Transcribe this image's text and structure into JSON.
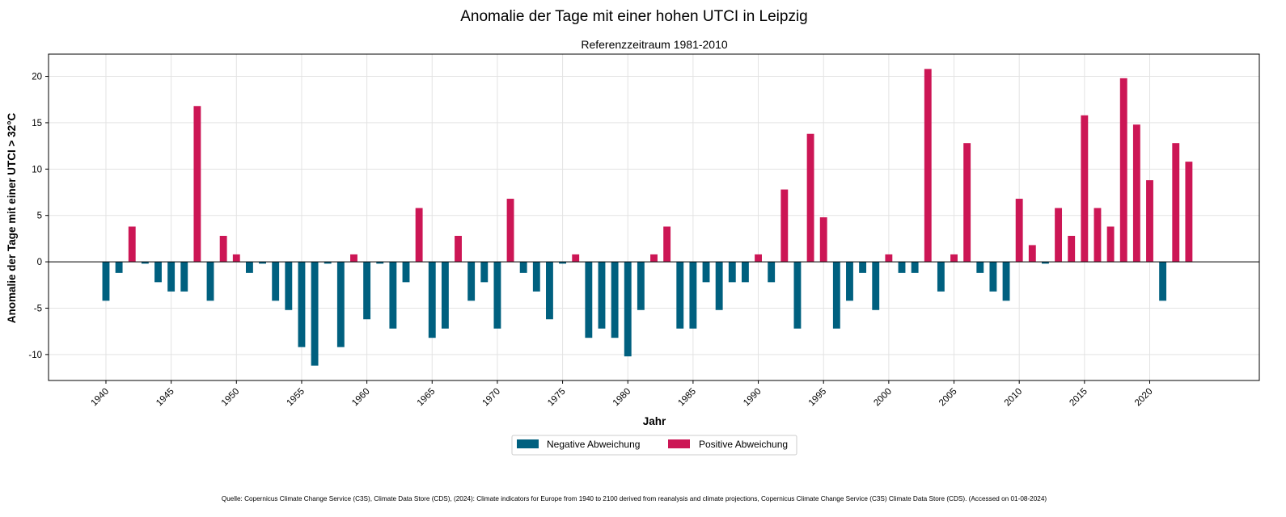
{
  "chart_data": {
    "type": "bar",
    "title": "Anomalie der Tage mit einer hohen UTCI in Leipzig",
    "subtitle": "Referenzzeitraum 1981-2010",
    "xlabel": "Jahr",
    "ylabel": "Anomalie der Tage mit einer UTCI > 32°C",
    "ylim": [
      -12.8,
      22.4
    ],
    "xlim": [
      1935.6,
      2028.4
    ],
    "grid": true,
    "legend_position": "bottom-center",
    "x_ticks": [
      1940,
      1945,
      1950,
      1955,
      1960,
      1965,
      1970,
      1975,
      1980,
      1985,
      1990,
      1995,
      2000,
      2005,
      2010,
      2015,
      2020
    ],
    "y_ticks": [
      -10,
      -5,
      0,
      5,
      10,
      15,
      20
    ],
    "series": [
      {
        "name": "Negative Abweichung",
        "color": "#00607f"
      },
      {
        "name": "Positive Abweichung",
        "color": "#cc1655"
      }
    ],
    "x": [
      1940,
      1941,
      1942,
      1943,
      1944,
      1945,
      1946,
      1947,
      1948,
      1949,
      1950,
      1951,
      1952,
      1953,
      1954,
      1955,
      1956,
      1957,
      1958,
      1959,
      1960,
      1961,
      1962,
      1963,
      1964,
      1965,
      1966,
      1967,
      1968,
      1969,
      1970,
      1971,
      1972,
      1973,
      1974,
      1975,
      1976,
      1977,
      1978,
      1979,
      1980,
      1981,
      1982,
      1983,
      1984,
      1985,
      1986,
      1987,
      1988,
      1989,
      1990,
      1991,
      1992,
      1993,
      1994,
      1995,
      1996,
      1997,
      1998,
      1999,
      2000,
      2001,
      2002,
      2003,
      2004,
      2005,
      2006,
      2007,
      2008,
      2009,
      2010,
      2011,
      2012,
      2013,
      2014,
      2015,
      2016,
      2017,
      2018,
      2019,
      2020,
      2021,
      2022,
      2023
    ],
    "values": [
      -4.2,
      -1.2,
      3.8,
      -0.2,
      -2.2,
      -3.2,
      -3.2,
      16.8,
      -4.2,
      2.8,
      0.8,
      -1.2,
      -0.2,
      -4.2,
      -5.2,
      -9.2,
      -11.2,
      -0.2,
      -9.2,
      0.8,
      -6.2,
      -0.2,
      -7.2,
      -2.2,
      5.8,
      -8.2,
      -7.2,
      2.8,
      -4.2,
      -2.2,
      -7.2,
      6.8,
      -1.2,
      -3.2,
      -6.2,
      -0.2,
      0.8,
      -8.2,
      -7.2,
      -8.2,
      -10.2,
      -5.2,
      0.8,
      3.8,
      -7.2,
      -7.2,
      -2.2,
      -5.2,
      -2.2,
      -2.2,
      0.8,
      -2.2,
      7.8,
      -7.2,
      13.8,
      4.8,
      -7.2,
      -4.2,
      -1.2,
      -5.2,
      0.8,
      -1.2,
      -1.2,
      20.8,
      -3.2,
      0.8,
      12.8,
      -1.2,
      -3.2,
      -4.2,
      6.8,
      1.8,
      -0.2,
      5.8,
      2.8,
      15.8,
      5.8,
      3.8,
      19.8,
      14.8,
      8.8,
      -4.2,
      12.8,
      10.8
    ],
    "source_note": "Quelle: Copernicus Climate Change Service (C3S), Climate Data Store (CDS), (2024): Climate indicators for Europe from 1940 to 2100 derived from reanalysis and climate projections, Copernicus Climate Change Service (C3S) Climate Data Store (CDS). (Accessed on 01-08-2024)"
  }
}
